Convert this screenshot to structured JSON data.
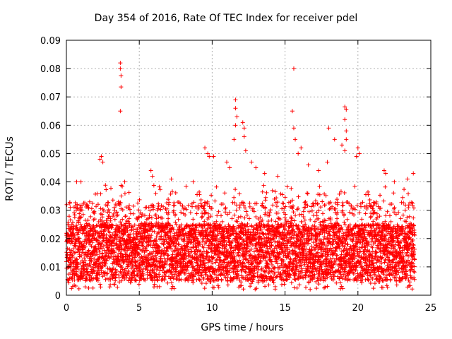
{
  "chart_data": {
    "type": "scatter",
    "title": "Day 354 of 2016, Rate Of TEC Index for receiver pdel",
    "xlabel": "GPS time / hours",
    "ylabel": "ROTI / TECUs",
    "xlim": [
      0,
      25
    ],
    "ylim": [
      0,
      0.09
    ],
    "x_ticks": [
      "0",
      "5",
      "10",
      "15",
      "20",
      "25"
    ],
    "y_ticks": [
      "0",
      "0.01",
      "0.02",
      "0.03",
      "0.04",
      "0.05",
      "0.06",
      "0.07",
      "0.08",
      "0.09"
    ],
    "grid": true,
    "marker": "+",
    "marker_color": "#ff0000",
    "x_range_of_points": [
      0,
      23.9
    ],
    "typical_band": [
      0.005,
      0.025
    ],
    "series": [
      {
        "points": [
          [
            3.7,
            0.082
          ],
          [
            3.7,
            0.08
          ],
          [
            3.75,
            0.0775
          ],
          [
            3.75,
            0.0735
          ],
          [
            3.7,
            0.065
          ],
          [
            15.6,
            0.08
          ],
          [
            15.5,
            0.065
          ],
          [
            11.6,
            0.069
          ],
          [
            11.6,
            0.066
          ],
          [
            11.7,
            0.063
          ],
          [
            11.6,
            0.06
          ],
          [
            11.5,
            0.055
          ],
          [
            12.1,
            0.061
          ],
          [
            12.2,
            0.059
          ],
          [
            12.2,
            0.056
          ],
          [
            12.3,
            0.051
          ],
          [
            19.1,
            0.0665
          ],
          [
            19.2,
            0.0655
          ],
          [
            19.1,
            0.062
          ],
          [
            19.2,
            0.058
          ],
          [
            19.2,
            0.055
          ],
          [
            19.1,
            0.051
          ],
          [
            18.0,
            0.059
          ],
          [
            18.4,
            0.055
          ],
          [
            18.9,
            0.053
          ],
          [
            15.6,
            0.059
          ],
          [
            15.7,
            0.055
          ],
          [
            16.1,
            0.052
          ],
          [
            15.9,
            0.05
          ],
          [
            20.0,
            0.052
          ],
          [
            20.1,
            0.05
          ],
          [
            19.9,
            0.049
          ],
          [
            9.5,
            0.052
          ],
          [
            9.7,
            0.05
          ],
          [
            9.8,
            0.049
          ],
          [
            10.1,
            0.049
          ],
          [
            2.3,
            0.048
          ],
          [
            2.4,
            0.049
          ],
          [
            2.5,
            0.047
          ],
          [
            21.8,
            0.044
          ],
          [
            21.9,
            0.043
          ],
          [
            23.8,
            0.043
          ],
          [
            5.8,
            0.044
          ],
          [
            5.9,
            0.042
          ],
          [
            0.7,
            0.04
          ],
          [
            1.0,
            0.04
          ],
          [
            4.0,
            0.04
          ],
          [
            7.2,
            0.041
          ],
          [
            8.7,
            0.04
          ],
          [
            13.6,
            0.043
          ],
          [
            14.5,
            0.042
          ],
          [
            17.3,
            0.044
          ],
          [
            22.5,
            0.04
          ],
          [
            23.4,
            0.041
          ],
          [
            11.0,
            0.047
          ],
          [
            11.2,
            0.045
          ],
          [
            12.7,
            0.047
          ],
          [
            13.0,
            0.045
          ],
          [
            16.6,
            0.046
          ],
          [
            17.9,
            0.047
          ]
        ]
      }
    ]
  }
}
